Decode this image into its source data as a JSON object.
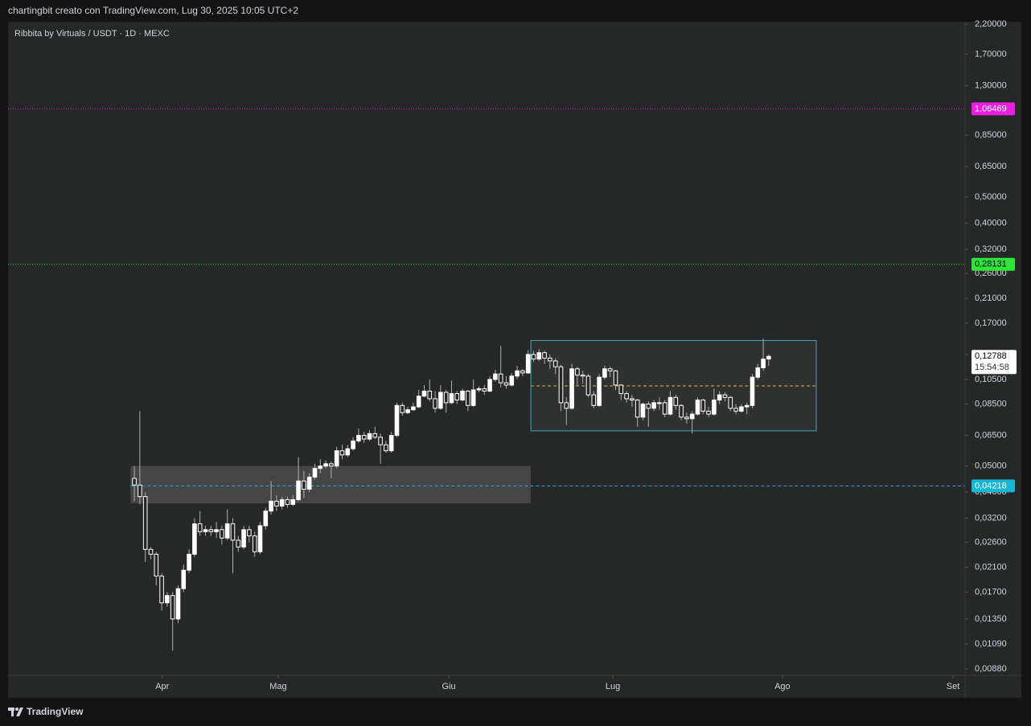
{
  "header": "chartingbit creato con TradingView.com, Lug 30, 2025 10:05 UTC+2",
  "footer": "TradingView",
  "chart_data": {
    "type": "candlestick",
    "title": "Ribbita by Virtuals / USDT · 1D · MEXC",
    "log_scale": true,
    "up_color": "#ffffff",
    "down_color": "#ffffff",
    "wick_color": "#b0b0b0",
    "open": [
      0.045,
      0.0425,
      0.0385,
      0.0245,
      0.0235,
      0.0195,
      0.0155,
      0.0165,
      0.0135,
      0.0175,
      0.0205,
      0.0235,
      0.0305,
      0.0285,
      0.029,
      0.0285,
      0.029,
      0.027,
      0.0305,
      0.0265,
      0.025,
      0.029,
      0.0275,
      0.024,
      0.03,
      0.034,
      0.037,
      0.0355,
      0.0375,
      0.036,
      0.0375,
      0.044,
      0.041,
      0.0455,
      0.049,
      0.05,
      0.051,
      0.05,
      0.057,
      0.055,
      0.058,
      0.062,
      0.065,
      0.063,
      0.066,
      0.064,
      0.06,
      0.057,
      0.065,
      0.084,
      0.079,
      0.081,
      0.083,
      0.091,
      0.095,
      0.089,
      0.082,
      0.094,
      0.086,
      0.093,
      0.088,
      0.095,
      0.084,
      0.096,
      0.097,
      0.095,
      0.105,
      0.11,
      0.102,
      0.1,
      0.108,
      0.113,
      0.111,
      0.13,
      0.125,
      0.132,
      0.126,
      0.123,
      0.117,
      0.086,
      0.082,
      0.115,
      0.109,
      0.108,
      0.092,
      0.084,
      0.107,
      0.115,
      0.113,
      0.1,
      0.093,
      0.089,
      0.088,
      0.076,
      0.085,
      0.082,
      0.086,
      0.086,
      0.078,
      0.09,
      0.084,
      0.076,
      0.075,
      0.078,
      0.088,
      0.08,
      0.078,
      0.088,
      0.092,
      0.09,
      0.082,
      0.08,
      0.083,
      0.084,
      0.107,
      0.116,
      0.125
    ],
    "high": [
      0.05,
      0.08,
      0.04,
      0.025,
      0.024,
      0.02,
      0.017,
      0.017,
      0.018,
      0.0215,
      0.0245,
      0.032,
      0.034,
      0.03,
      0.03,
      0.031,
      0.03,
      0.0345,
      0.032,
      0.0275,
      0.03,
      0.03,
      0.0285,
      0.031,
      0.035,
      0.044,
      0.039,
      0.0385,
      0.0385,
      0.039,
      0.054,
      0.048,
      0.047,
      0.051,
      0.053,
      0.0525,
      0.052,
      0.059,
      0.06,
      0.06,
      0.064,
      0.069,
      0.067,
      0.068,
      0.07,
      0.066,
      0.062,
      0.067,
      0.086,
      0.086,
      0.083,
      0.086,
      0.096,
      0.1,
      0.105,
      0.095,
      0.1,
      0.096,
      0.104,
      0.095,
      0.097,
      0.096,
      0.105,
      0.099,
      0.1,
      0.108,
      0.114,
      0.14,
      0.108,
      0.111,
      0.118,
      0.115,
      0.135,
      0.134,
      0.136,
      0.134,
      0.13,
      0.126,
      0.119,
      0.09,
      0.12,
      0.117,
      0.113,
      0.11,
      0.095,
      0.11,
      0.118,
      0.117,
      0.114,
      0.101,
      0.095,
      0.092,
      0.089,
      0.086,
      0.087,
      0.088,
      0.09,
      0.088,
      0.095,
      0.092,
      0.085,
      0.079,
      0.08,
      0.09,
      0.089,
      0.083,
      0.097,
      0.095,
      0.094,
      0.091,
      0.085,
      0.085,
      0.086,
      0.11,
      0.12,
      0.149,
      0.13
    ],
    "low": [
      0.037,
      0.036,
      0.022,
      0.0225,
      0.018,
      0.0145,
      0.015,
      0.0103,
      0.013,
      0.017,
      0.02,
      0.023,
      0.0275,
      0.0275,
      0.0275,
      0.027,
      0.0255,
      0.0265,
      0.02,
      0.024,
      0.0245,
      0.026,
      0.023,
      0.0235,
      0.029,
      0.033,
      0.034,
      0.0345,
      0.035,
      0.0355,
      0.037,
      0.038,
      0.04,
      0.0445,
      0.047,
      0.049,
      0.045,
      0.049,
      0.053,
      0.054,
      0.057,
      0.061,
      0.061,
      0.062,
      0.063,
      0.051,
      0.056,
      0.056,
      0.064,
      0.077,
      0.078,
      0.08,
      0.082,
      0.09,
      0.087,
      0.079,
      0.081,
      0.079,
      0.085,
      0.085,
      0.087,
      0.08,
      0.083,
      0.094,
      0.092,
      0.094,
      0.103,
      0.098,
      0.097,
      0.099,
      0.105,
      0.108,
      0.11,
      0.122,
      0.123,
      0.12,
      0.115,
      0.11,
      0.08,
      0.071,
      0.081,
      0.1,
      0.101,
      0.09,
      0.082,
      0.083,
      0.105,
      0.107,
      0.096,
      0.088,
      0.086,
      0.083,
      0.07,
      0.074,
      0.07,
      0.08,
      0.081,
      0.076,
      0.077,
      0.081,
      0.074,
      0.072,
      0.066,
      0.077,
      0.078,
      0.076,
      0.077,
      0.085,
      0.087,
      0.08,
      0.078,
      0.079,
      0.078,
      0.082,
      0.105,
      0.113,
      0.118
    ],
    "close": [
      0.0425,
      0.0385,
      0.0245,
      0.0235,
      0.0195,
      0.0155,
      0.0165,
      0.0135,
      0.0175,
      0.0205,
      0.0235,
      0.0305,
      0.0285,
      0.029,
      0.0285,
      0.029,
      0.027,
      0.0305,
      0.0265,
      0.025,
      0.029,
      0.0275,
      0.024,
      0.03,
      0.034,
      0.037,
      0.0355,
      0.0375,
      0.036,
      0.0375,
      0.044,
      0.041,
      0.0455,
      0.049,
      0.05,
      0.051,
      0.05,
      0.057,
      0.055,
      0.058,
      0.062,
      0.065,
      0.063,
      0.066,
      0.064,
      0.06,
      0.057,
      0.065,
      0.084,
      0.079,
      0.081,
      0.083,
      0.091,
      0.095,
      0.089,
      0.082,
      0.094,
      0.086,
      0.093,
      0.088,
      0.095,
      0.084,
      0.096,
      0.097,
      0.095,
      0.105,
      0.11,
      0.102,
      0.1,
      0.108,
      0.113,
      0.111,
      0.13,
      0.125,
      0.132,
      0.126,
      0.123,
      0.117,
      0.086,
      0.082,
      0.115,
      0.109,
      0.108,
      0.092,
      0.084,
      0.107,
      0.115,
      0.113,
      0.1,
      0.093,
      0.089,
      0.088,
      0.076,
      0.085,
      0.082,
      0.086,
      0.086,
      0.078,
      0.09,
      0.084,
      0.076,
      0.075,
      0.078,
      0.088,
      0.08,
      0.078,
      0.088,
      0.092,
      0.09,
      0.082,
      0.08,
      0.083,
      0.084,
      0.107,
      0.116,
      0.125,
      0.12788
    ],
    "xlim": [
      -23.1,
      151.9
    ],
    "xticks": [
      {
        "value": 5.1,
        "label": "Apr"
      },
      {
        "value": 26.3,
        "label": "Mag"
      },
      {
        "value": 57.5,
        "label": "Giu"
      },
      {
        "value": 87.5,
        "label": "Lug"
      },
      {
        "value": 118.5,
        "label": "Ago"
      },
      {
        "value": 149.7,
        "label": "Set"
      }
    ],
    "ylim": [
      0.00833,
      2.246
    ],
    "yticks": [
      {
        "value": 2.2,
        "label": "2,20000"
      },
      {
        "value": 1.7,
        "label": "1,70000"
      },
      {
        "value": 1.3,
        "label": "1,30000"
      },
      {
        "value": 0.85,
        "label": "0,85000"
      },
      {
        "value": 0.65,
        "label": "0,65000"
      },
      {
        "value": 0.5,
        "label": "0,50000"
      },
      {
        "value": 0.4,
        "label": "0,40000"
      },
      {
        "value": 0.32,
        "label": "0,32000"
      },
      {
        "value": 0.26,
        "label": "0,26000"
      },
      {
        "value": 0.21,
        "label": "0,21000"
      },
      {
        "value": 0.17,
        "label": "0,17000"
      },
      {
        "value": 0.13,
        "label": "0,13000"
      },
      {
        "value": 0.105,
        "label": "0,10500"
      },
      {
        "value": 0.085,
        "label": "0,08500"
      },
      {
        "value": 0.065,
        "label": "0,06500"
      },
      {
        "value": 0.05,
        "label": "0,05000"
      },
      {
        "value": 0.04,
        "label": "0,04000"
      },
      {
        "value": 0.032,
        "label": "0,03200"
      },
      {
        "value": 0.026,
        "label": "0,02600"
      },
      {
        "value": 0.021,
        "label": "0,02100"
      },
      {
        "value": 0.017,
        "label": "0,01700"
      },
      {
        "value": 0.0135,
        "label": "0,01350"
      },
      {
        "value": 0.0109,
        "label": "0,01090"
      },
      {
        "value": 0.0088,
        "label": "0,00880"
      }
    ],
    "price_lines": [
      {
        "value": 1.06469,
        "label": "1,06469",
        "color": "#e91ee0",
        "dash": "1 2",
        "start": -23.1
      },
      {
        "value": 0.28131,
        "label": "0,28131",
        "color": "#2ee63a",
        "dash": "1 2",
        "start": -23.1
      },
      {
        "value": 0.04218,
        "label": "0,04218",
        "color": "#16b7d3",
        "dash": "4 3",
        "start": -0.7
      }
    ],
    "last_price": {
      "value": 0.12788,
      "label": "0,12788",
      "countdown": "15:54:58"
    },
    "zones": [
      {
        "start": -0.7,
        "end": 72.5,
        "top": 0.05,
        "bottom": 0.03635,
        "fill": "#505050",
        "border": "none"
      },
      {
        "start": 72.5,
        "end": 124.7,
        "top": 0.1465,
        "bottom": 0.0676,
        "fill": "#333434",
        "border": "#43a8b5",
        "mid": 0.0993,
        "mid_color": "#d7b25a"
      }
    ]
  }
}
